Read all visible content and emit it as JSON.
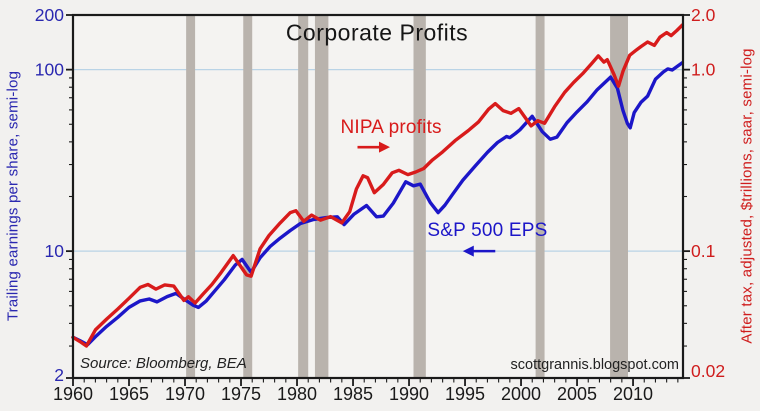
{
  "title": "Corporate Profits",
  "source_note": "Source: Bloomberg, BEA",
  "watermark": "scottgrannis.blogspot.com",
  "colors": {
    "red_series": "#d81b1b",
    "blue_series": "#1c16c8",
    "left_axis_text": "#2a28b0",
    "right_axis_text": "#cf1d1d",
    "recession_band": "#b9b3ad",
    "gridline": "#b9d3e6",
    "frame": "#1a1a1a",
    "plot_background": "#f4f3f1",
    "page_background": "#f2f1ef",
    "title_text": "#161616"
  },
  "axes": {
    "left": {
      "title": "Trailing earnings per share, semi-log",
      "major_ticks": [
        {
          "value": 200,
          "label": "200"
        },
        {
          "value": 100,
          "label": "100"
        },
        {
          "value": 10,
          "label": "10"
        },
        {
          "value": 2,
          "label": "2"
        }
      ],
      "minor_ticks": [
        3,
        4,
        5,
        6,
        7,
        8,
        9,
        20,
        30,
        40,
        50,
        60,
        70,
        80,
        90
      ],
      "range": [
        2,
        200
      ],
      "scale": "log"
    },
    "right": {
      "title": "After tax, adjusted, $trillions, saar, semi-log",
      "major_ticks": [
        {
          "value": 2.0,
          "label": "2.0"
        },
        {
          "value": 1.0,
          "label": "1.0"
        },
        {
          "value": 0.1,
          "label": "0.1"
        },
        {
          "value": 0.02,
          "label": "0.02"
        }
      ],
      "minor_ticks": [
        0.03,
        0.04,
        0.05,
        0.06,
        0.07,
        0.08,
        0.09,
        0.2,
        0.3,
        0.4,
        0.5,
        0.6,
        0.7,
        0.8,
        0.9
      ],
      "range": [
        0.02,
        2.0
      ],
      "scale": "log"
    },
    "x": {
      "major_ticks": [
        {
          "value": 1960,
          "label": "1960"
        },
        {
          "value": 1965,
          "label": "1965"
        },
        {
          "value": 1970,
          "label": "1970"
        },
        {
          "value": 1975,
          "label": "1975"
        },
        {
          "value": 1980,
          "label": "1980"
        },
        {
          "value": 1985,
          "label": "1985"
        },
        {
          "value": 1990,
          "label": "1990"
        },
        {
          "value": 1995,
          "label": "1995"
        },
        {
          "value": 2000,
          "label": "2000"
        },
        {
          "value": 2005,
          "label": "2005"
        },
        {
          "value": 2010,
          "label": "2010"
        }
      ],
      "minor_step": 1,
      "range": [
        1960,
        2014.46
      ]
    }
  },
  "annotations": {
    "nipa": {
      "text": "NIPA profits",
      "color": "#d81b1b",
      "x_year": 1988.4,
      "y_value_left": 47.7,
      "arrow": {
        "from_year": 1985.4,
        "to_year": 1988.3,
        "y_value_left": 37.4
      }
    },
    "spx": {
      "text": "S&P 500 EPS",
      "color": "#1c16c8",
      "x_year": 1997.0,
      "y_value_left": 12.9,
      "arrow": {
        "from_year": 1997.7,
        "to_year": 1994.8,
        "y_value_left": 10.0
      }
    }
  },
  "chart_data": {
    "type": "line",
    "title": "Corporate Profits",
    "scale": "semi-log",
    "x_range": [
      1960,
      2014.46
    ],
    "left_ylim": [
      2,
      200
    ],
    "right_ylim": [
      0.02,
      2.0
    ],
    "gridlines_left_values": [
      100,
      10
    ],
    "grid": "horizontal-only",
    "legend_position": "inline-annotations",
    "recession_bands": [
      [
        1970.1,
        1970.9
      ],
      [
        1975.2,
        1976.0
      ],
      [
        1980.1,
        1981.0
      ],
      [
        1981.6,
        1982.8
      ],
      [
        1990.4,
        1991.5
      ],
      [
        2001.3,
        2002.1
      ],
      [
        2007.95,
        2009.55
      ]
    ],
    "series": [
      {
        "name": "S&P 500 EPS",
        "axis": "left",
        "units": "$ per share",
        "color": "#1c16c8",
        "x": [
          1960,
          1960.6,
          1961.3,
          1962.1,
          1963,
          1964,
          1965,
          1966,
          1966.8,
          1967.5,
          1968.4,
          1969.2,
          1970,
          1970.7,
          1971.2,
          1971.9,
          1972.6,
          1973.5,
          1974.5,
          1975.1,
          1975.9,
          1976.7,
          1977.6,
          1978.5,
          1979.4,
          1980.3,
          1981.4,
          1982.6,
          1983.6,
          1984.2,
          1985.1,
          1986.2,
          1987.1,
          1987.7,
          1988.6,
          1989.7,
          1990.4,
          1991,
          1991.9,
          1992.6,
          1993.2,
          1993.9,
          1994.8,
          1995.9,
          1997,
          1997.9,
          1998.7,
          1999,
          1999.5,
          1999.9,
          2001,
          2001.9,
          2002.6,
          2003.2,
          2004.1,
          2005,
          2005.9,
          2006.8,
          2008,
          2008.6,
          2009.1,
          2009.5,
          2009.75,
          2010.1,
          2010.7,
          2011.3,
          2012,
          2012.7,
          2013.1,
          2013.5,
          2014.4
        ],
        "values": [
          3.35,
          3.22,
          3.05,
          3.42,
          3.85,
          4.32,
          4.9,
          5.32,
          5.45,
          5.25,
          5.62,
          5.85,
          5.4,
          5.05,
          4.9,
          5.32,
          5.98,
          6.95,
          8.4,
          9,
          7.65,
          9.2,
          10.6,
          11.8,
          13,
          14.2,
          14.9,
          15.3,
          15.45,
          14,
          16,
          17.85,
          15.45,
          15.6,
          18.4,
          24.1,
          22.9,
          23.4,
          18.5,
          16.3,
          17.9,
          20.6,
          24.6,
          29.4,
          35,
          39.7,
          42.8,
          42.2,
          44.5,
          46.6,
          55.3,
          45.5,
          41.4,
          42.5,
          51,
          58.5,
          66.5,
          77.5,
          91,
          79,
          59.5,
          50.5,
          47.8,
          58,
          66,
          71.5,
          88.5,
          97,
          101,
          99.5,
          109
        ]
      },
      {
        "name": "NIPA profits",
        "axis": "right",
        "units": "$ trillions",
        "color": "#d81b1b",
        "x": [
          1960,
          1960.6,
          1961.2,
          1962,
          1963,
          1964,
          1965,
          1966,
          1966.7,
          1967.4,
          1968.2,
          1969,
          1969.9,
          1970.3,
          1970.9,
          1971.6,
          1972.4,
          1973.2,
          1974.3,
          1975.5,
          1975.9,
          1976.7,
          1977.5,
          1978.5,
          1979.4,
          1979.9,
          1980.6,
          1981.3,
          1982.1,
          1983,
          1984,
          1984.7,
          1985.3,
          1985.9,
          1986.3,
          1986.9,
          1987.7,
          1988.5,
          1989.1,
          1989.9,
          1990.6,
          1991.3,
          1992.1,
          1993,
          1994.1,
          1995.3,
          1996.2,
          1997.1,
          1997.7,
          1998.4,
          1999.1,
          1999.8,
          2000.9,
          2001.5,
          2002.1,
          2003,
          2003.9,
          2004.7,
          2005.5,
          2006.3,
          2006.9,
          2007.4,
          2007.7,
          2008.3,
          2008.7,
          2009.1,
          2009.7,
          2010.2,
          2010.7,
          2011.3,
          2011.9,
          2012.4,
          2013,
          2013.4,
          2013.9,
          2014.4
        ],
        "values": [
          0.0335,
          0.0318,
          0.03,
          0.0368,
          0.0422,
          0.048,
          0.055,
          0.0632,
          0.0655,
          0.0618,
          0.0652,
          0.0642,
          0.0535,
          0.056,
          0.0518,
          0.0578,
          0.0655,
          0.076,
          0.0945,
          0.074,
          0.0728,
          0.103,
          0.122,
          0.143,
          0.163,
          0.167,
          0.146,
          0.158,
          0.148,
          0.155,
          0.143,
          0.165,
          0.22,
          0.26,
          0.254,
          0.21,
          0.233,
          0.27,
          0.279,
          0.264,
          0.273,
          0.285,
          0.318,
          0.352,
          0.406,
          0.462,
          0.515,
          0.605,
          0.65,
          0.595,
          0.575,
          0.61,
          0.49,
          0.523,
          0.506,
          0.625,
          0.75,
          0.85,
          0.95,
          1.08,
          1.19,
          1.1,
          1.135,
          0.94,
          0.81,
          0.98,
          1.2,
          1.27,
          1.34,
          1.42,
          1.36,
          1.51,
          1.6,
          1.54,
          1.64,
          1.76
        ]
      }
    ]
  }
}
